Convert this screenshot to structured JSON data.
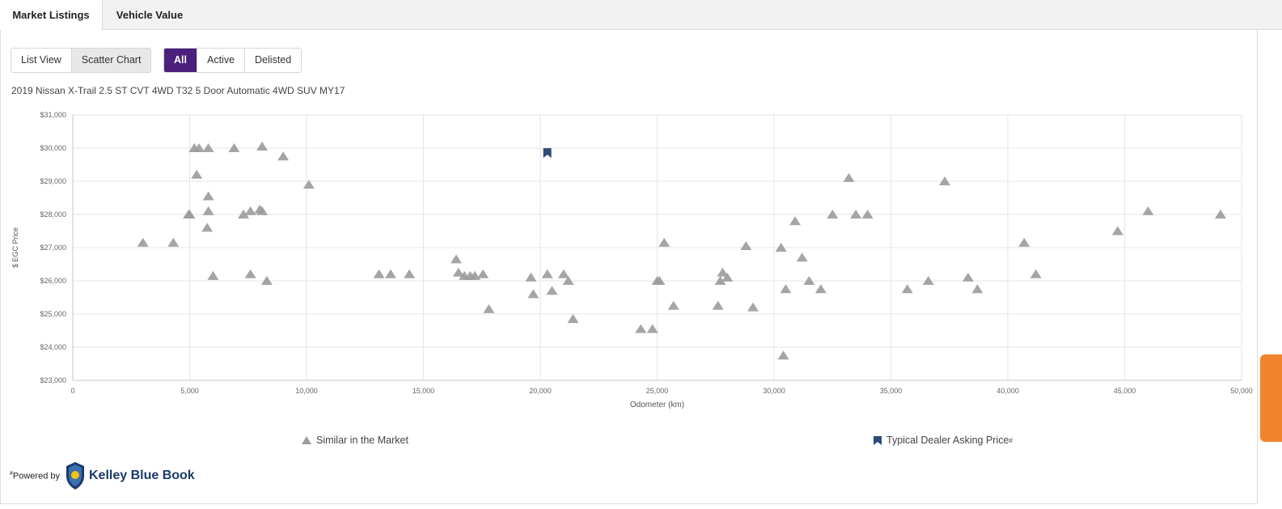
{
  "tabs": [
    {
      "label": "Market Listings",
      "active": true
    },
    {
      "label": "Vehicle Value",
      "active": false
    }
  ],
  "view_toggle": {
    "list": "List View",
    "scatter": "Scatter Chart",
    "selected": "Scatter Chart"
  },
  "status_filter": {
    "all": "All",
    "active": "Active",
    "delisted": "Delisted",
    "selected": "All"
  },
  "vehicle_title": "2019 Nissan X-Trail 2.5 ST CVT 4WD T32 5 Door Automatic 4WD SUV MY17",
  "legend": {
    "similar": "Similar in the Market",
    "dealer": "Typical Dealer Asking Price",
    "dealer_mark": "#"
  },
  "footer": {
    "powered": "Powered by",
    "powered_mark": "#",
    "brand": "Kelley Blue Book"
  },
  "colors": {
    "purple": "#4b1f7c",
    "triangle": "#9b9b9b",
    "dealer_marker": "#2d4a7a",
    "side_tab": "#f0842c"
  },
  "chart_data": {
    "type": "scatter",
    "xlabel": "Odometer (km)",
    "ylabel": "$ EGC Price",
    "xlim": [
      0,
      50000
    ],
    "ylim": [
      23000,
      31000
    ],
    "x_ticks": [
      "0",
      "5,000",
      "10,000",
      "15,000",
      "20,000",
      "25,000",
      "30,000",
      "35,000",
      "40,000",
      "45,000",
      "50,000"
    ],
    "y_ticks": [
      "$23,000",
      "$24,000",
      "$25,000",
      "$26,000",
      "$27,000",
      "$28,000",
      "$29,000",
      "$30,000",
      "$31,000"
    ],
    "grid": true,
    "series": [
      {
        "name": "Similar in the Market",
        "marker": "triangle",
        "points": [
          [
            3000,
            27150
          ],
          [
            4300,
            27150
          ],
          [
            5000,
            28000
          ],
          [
            4950,
            28000
          ],
          [
            5200,
            30000
          ],
          [
            5400,
            30000
          ],
          [
            5800,
            30000
          ],
          [
            6900,
            30000
          ],
          [
            8100,
            30050
          ],
          [
            9000,
            29750
          ],
          [
            5300,
            29200
          ],
          [
            5800,
            28550
          ],
          [
            5800,
            28100
          ],
          [
            5750,
            27600
          ],
          [
            6000,
            26150
          ],
          [
            7300,
            28000
          ],
          [
            7600,
            28100
          ],
          [
            8000,
            28150
          ],
          [
            8100,
            28100
          ],
          [
            7600,
            26200
          ],
          [
            8300,
            26000
          ],
          [
            10100,
            28900
          ],
          [
            13100,
            26200
          ],
          [
            13600,
            26200
          ],
          [
            14400,
            26200
          ],
          [
            16400,
            26650
          ],
          [
            16500,
            26250
          ],
          [
            16750,
            26150
          ],
          [
            17000,
            26150
          ],
          [
            17200,
            26150
          ],
          [
            17550,
            26200
          ],
          [
            17800,
            25150
          ],
          [
            19600,
            26100
          ],
          [
            19700,
            25600
          ],
          [
            20300,
            26200
          ],
          [
            20500,
            25700
          ],
          [
            21000,
            26200
          ],
          [
            21200,
            26000
          ],
          [
            21400,
            24850
          ],
          [
            24300,
            24550
          ],
          [
            24800,
            24550
          ],
          [
            25000,
            26000
          ],
          [
            25100,
            26000
          ],
          [
            25300,
            27150
          ],
          [
            25700,
            25250
          ],
          [
            27600,
            25250
          ],
          [
            27700,
            26000
          ],
          [
            27800,
            26250
          ],
          [
            28000,
            26100
          ],
          [
            28800,
            27050
          ],
          [
            29100,
            25200
          ],
          [
            30300,
            27000
          ],
          [
            30400,
            23750
          ],
          [
            30500,
            25750
          ],
          [
            30900,
            27800
          ],
          [
            31200,
            26700
          ],
          [
            31500,
            26000
          ],
          [
            32000,
            25750
          ],
          [
            32500,
            28000
          ],
          [
            33200,
            29100
          ],
          [
            33500,
            28000
          ],
          [
            34000,
            28000
          ],
          [
            35700,
            25750
          ],
          [
            36600,
            26000
          ],
          [
            37300,
            29000
          ],
          [
            38300,
            26100
          ],
          [
            38700,
            25750
          ],
          [
            40700,
            27150
          ],
          [
            41200,
            26200
          ],
          [
            44700,
            27500
          ],
          [
            46000,
            28100
          ],
          [
            49100,
            28000
          ]
        ]
      },
      {
        "name": "Typical Dealer Asking Price",
        "marker": "bookmark",
        "points": [
          [
            20300,
            29850
          ]
        ]
      }
    ]
  }
}
